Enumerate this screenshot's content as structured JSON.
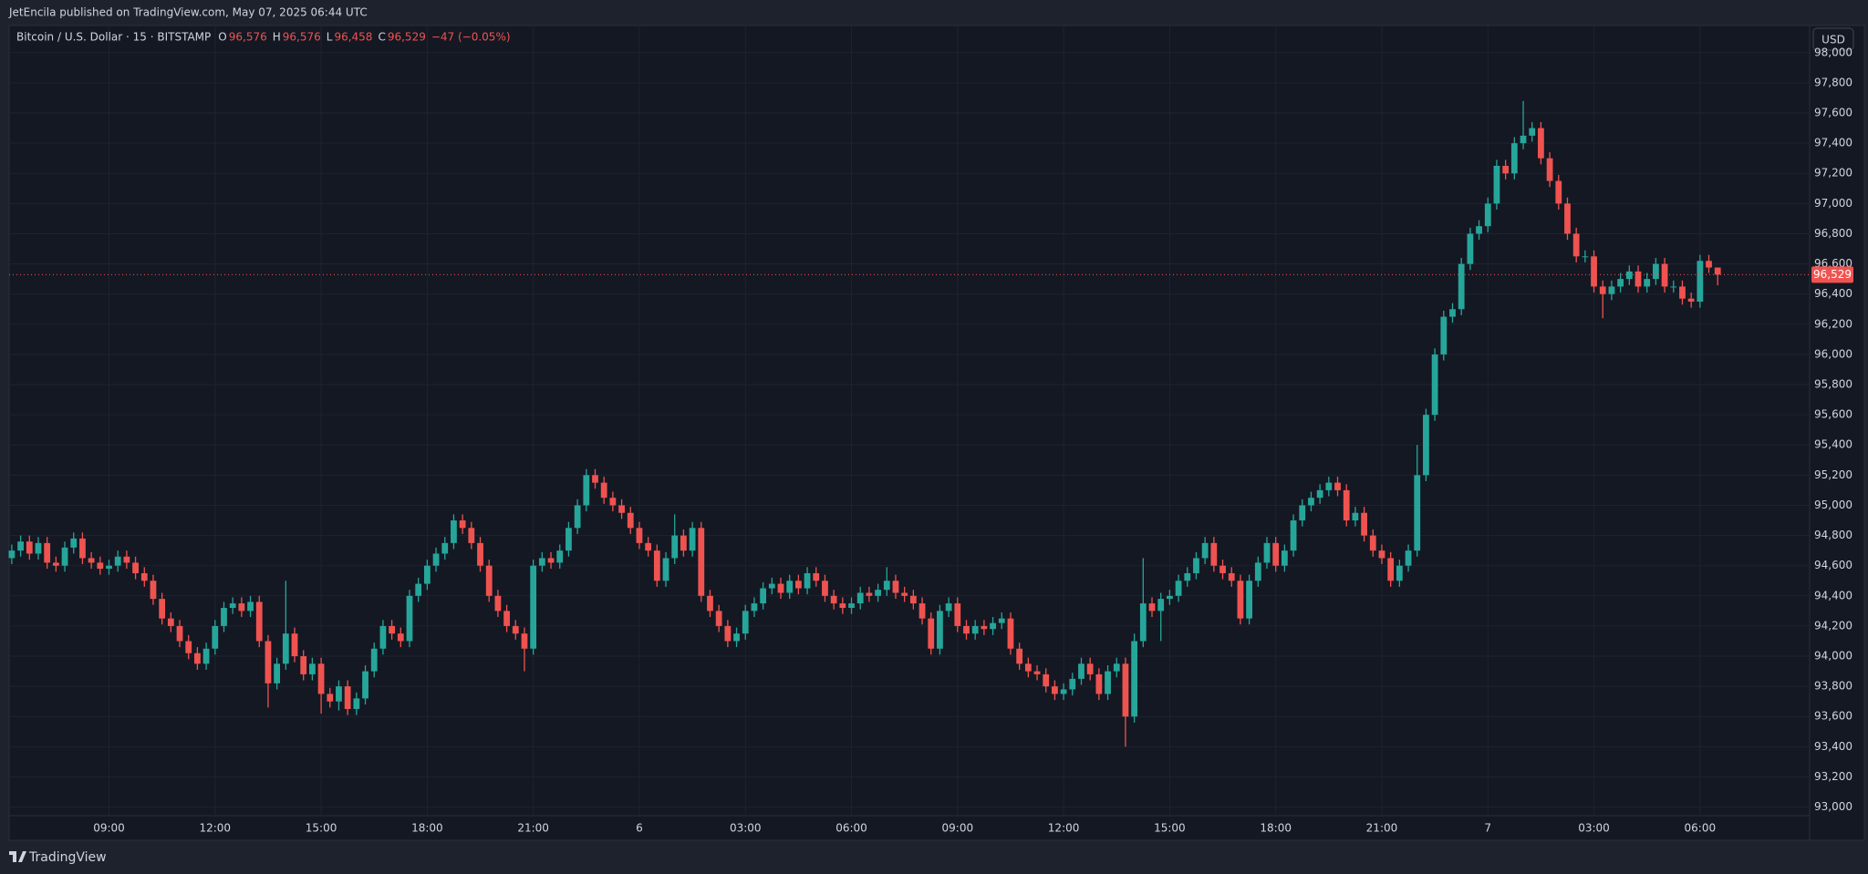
{
  "header": {
    "attribution": "JetEncila published on TradingView.com, May 07, 2025 06:44 UTC",
    "footer": "TradingView"
  },
  "chart_data": {
    "type": "candlestick",
    "symbol": "Bitcoin / U.S. Dollar · 15 · BITSTAMP",
    "ohlc_legend": {
      "o_key": "O",
      "o": "96,576",
      "h_key": "H",
      "h": "96,576",
      "l_key": "L",
      "l": "96,458",
      "c_key": "C",
      "c": "96,529",
      "change": "−47 (−0.05%)"
    },
    "currency": "USD",
    "up_color": "#26a69a",
    "down_color": "#ef5350",
    "last_price": {
      "value": 96529,
      "label": "96,529"
    },
    "xlim": [
      -0.3,
      203.4
    ],
    "xticks": [
      {
        "value": 11,
        "label": "09:00"
      },
      {
        "value": 23,
        "label": "12:00"
      },
      {
        "value": 35,
        "label": "15:00"
      },
      {
        "value": 47,
        "label": "18:00"
      },
      {
        "value": 59,
        "label": "21:00"
      },
      {
        "value": 71,
        "label": "6"
      },
      {
        "value": 83,
        "label": "03:00"
      },
      {
        "value": 95,
        "label": "06:00"
      },
      {
        "value": 107,
        "label": "09:00"
      },
      {
        "value": 119,
        "label": "12:00"
      },
      {
        "value": 131,
        "label": "15:00"
      },
      {
        "value": 143,
        "label": "18:00"
      },
      {
        "value": 155,
        "label": "21:00"
      },
      {
        "value": 167,
        "label": "7"
      },
      {
        "value": 179,
        "label": "03:00"
      },
      {
        "value": 191,
        "label": "06:00"
      }
    ],
    "ylim": [
      92780,
      98180
    ],
    "yticks": [
      {
        "value": 93000,
        "label": "93,000"
      },
      {
        "value": 93200,
        "label": "93,200"
      },
      {
        "value": 93400,
        "label": "93,400"
      },
      {
        "value": 93600,
        "label": "93,600"
      },
      {
        "value": 93800,
        "label": "93,800"
      },
      {
        "value": 94000,
        "label": "94,000"
      },
      {
        "value": 94200,
        "label": "94,200"
      },
      {
        "value": 94400,
        "label": "94,400"
      },
      {
        "value": 94600,
        "label": "94,600"
      },
      {
        "value": 94800,
        "label": "94,800"
      },
      {
        "value": 95000,
        "label": "95,000"
      },
      {
        "value": 95200,
        "label": "95,200"
      },
      {
        "value": 95400,
        "label": "95,400"
      },
      {
        "value": 95600,
        "label": "95,600"
      },
      {
        "value": 95800,
        "label": "95,800"
      },
      {
        "value": 96000,
        "label": "96,000"
      },
      {
        "value": 96200,
        "label": "96,200"
      },
      {
        "value": 96400,
        "label": "96,400"
      },
      {
        "value": 96600,
        "label": "96,600"
      },
      {
        "value": 96800,
        "label": "96,800"
      },
      {
        "value": 97000,
        "label": "97,000"
      },
      {
        "value": 97200,
        "label": "97,200"
      },
      {
        "value": 97400,
        "label": "97,400"
      },
      {
        "value": 97600,
        "label": "97,600"
      },
      {
        "value": 97800,
        "label": "97,800"
      },
      {
        "value": 98000,
        "label": "98,000"
      }
    ],
    "grid": true,
    "candles": {
      "open": [
        94650,
        94700,
        94760,
        94680,
        94750,
        94620,
        94600,
        94720,
        94780,
        94650,
        94620,
        94580,
        94600,
        94660,
        94620,
        94550,
        94500,
        94380,
        94250,
        94200,
        94100,
        94020,
        93950,
        94050,
        94200,
        94320,
        94350,
        94300,
        94360,
        94100,
        93820,
        93950,
        94150,
        94000,
        93880,
        93950,
        93750,
        93700,
        93800,
        93650,
        93720,
        93900,
        94050,
        94200,
        94150,
        94100,
        94400,
        94480,
        94600,
        94680,
        94750,
        94900,
        94850,
        94750,
        94600,
        94400,
        94300,
        94200,
        94150,
        94050,
        94600,
        94650,
        94620,
        94700,
        94850,
        95000,
        95200,
        95150,
        95050,
        95000,
        94950,
        94850,
        94750,
        94700,
        94500,
        94650,
        94800,
        94700,
        94850,
        94400,
        94300,
        94200,
        94100,
        94150,
        94300,
        94350,
        94450,
        94480,
        94420,
        94500,
        94450,
        94550,
        94500,
        94400,
        94350,
        94320,
        94350,
        94420,
        94400,
        94440,
        94500,
        94420,
        94400,
        94350,
        94250,
        94050,
        94300,
        94350,
        94200,
        94150,
        94200,
        94180,
        94220,
        94250,
        94050,
        93950,
        93900,
        93880,
        93800,
        93750,
        93780,
        93850,
        93950,
        93880,
        93750,
        93900,
        93950,
        93600,
        94100,
        94350,
        94300,
        94380,
        94400,
        94500,
        94550,
        94650,
        94750,
        94600,
        94550,
        94500,
        94250,
        94500,
        94620,
        94750,
        94600,
        94700,
        94900,
        95000,
        95050,
        95100,
        95150,
        95100,
        94900,
        94950,
        94800,
        94700,
        94650,
        94500,
        94600,
        94700,
        95200,
        95600,
        96000,
        96250,
        96300,
        96600,
        96800,
        96850,
        97000,
        97250,
        97200,
        97400,
        97450,
        97500,
        97300,
        97150,
        97000,
        96800,
        96650,
        96650,
        96450,
        96400,
        96450,
        96500,
        96550,
        96450,
        96500,
        96600,
        96450,
        96450,
        96370,
        96350,
        96620,
        96576
      ],
      "high": [
        94740,
        94800,
        94800,
        94790,
        94790,
        94660,
        94760,
        94820,
        94820,
        94690,
        94660,
        94640,
        94700,
        94700,
        94660,
        94590,
        94540,
        94420,
        94290,
        94240,
        94140,
        94060,
        94090,
        94240,
        94360,
        94390,
        94390,
        94400,
        94400,
        94140,
        93990,
        94500,
        94190,
        94040,
        93990,
        93990,
        93790,
        93840,
        93840,
        93760,
        93940,
        94090,
        94240,
        94240,
        94190,
        94440,
        94520,
        94640,
        94720,
        94790,
        94940,
        94940,
        94890,
        94790,
        94640,
        94440,
        94340,
        94240,
        94190,
        94640,
        94690,
        94690,
        94740,
        94890,
        95040,
        95240,
        95240,
        95190,
        95090,
        95040,
        94990,
        94890,
        94790,
        94740,
        94690,
        94940,
        94840,
        94890,
        94890,
        94440,
        94340,
        94240,
        94190,
        94340,
        94390,
        94490,
        94520,
        94520,
        94540,
        94540,
        94590,
        94590,
        94540,
        94440,
        94390,
        94390,
        94460,
        94460,
        94480,
        94590,
        94540,
        94460,
        94440,
        94390,
        94290,
        94340,
        94390,
        94390,
        94240,
        94240,
        94240,
        94260,
        94290,
        94290,
        94090,
        93990,
        93940,
        93920,
        93840,
        93820,
        93890,
        93990,
        93990,
        93920,
        93940,
        93990,
        93990,
        94150,
        94650,
        94390,
        94420,
        94440,
        94540,
        94590,
        94690,
        94790,
        94790,
        94640,
        94590,
        94540,
        94540,
        94660,
        94790,
        94790,
        94740,
        94940,
        95040,
        95090,
        95140,
        95190,
        95190,
        95140,
        94990,
        94990,
        94840,
        94740,
        94690,
        94640,
        94740,
        95400,
        95640,
        96040,
        96290,
        96340,
        96640,
        96840,
        96890,
        97040,
        97290,
        97290,
        97440,
        97680,
        97540,
        97540,
        97340,
        97190,
        97040,
        96840,
        96690,
        96690,
        96490,
        96490,
        96540,
        96590,
        96590,
        96540,
        96640,
        96640,
        96490,
        96490,
        96410,
        96660,
        96660,
        96576
      ],
      "low": [
        94610,
        94660,
        94640,
        94640,
        94580,
        94560,
        94560,
        94680,
        94610,
        94580,
        94540,
        94540,
        94560,
        94580,
        94510,
        94460,
        94340,
        94210,
        94160,
        94060,
        93980,
        93910,
        93910,
        94010,
        94160,
        94280,
        94260,
        94260,
        94060,
        93660,
        93780,
        93910,
        93960,
        93840,
        93840,
        93620,
        93660,
        93640,
        93610,
        93610,
        93680,
        93860,
        94010,
        94110,
        94060,
        94060,
        94360,
        94440,
        94560,
        94640,
        94710,
        94810,
        94710,
        94560,
        94360,
        94260,
        94160,
        94110,
        93900,
        94010,
        94560,
        94580,
        94580,
        94660,
        94810,
        94960,
        95110,
        95010,
        94960,
        94910,
        94810,
        94710,
        94660,
        94460,
        94460,
        94610,
        94660,
        94660,
        94360,
        94260,
        94160,
        94060,
        94060,
        94110,
        94260,
        94310,
        94410,
        94380,
        94380,
        94410,
        94410,
        94460,
        94360,
        94310,
        94280,
        94280,
        94310,
        94360,
        94360,
        94400,
        94380,
        94360,
        94310,
        94210,
        94010,
        94010,
        94260,
        94160,
        94110,
        94110,
        94140,
        94140,
        94180,
        94010,
        93910,
        93860,
        93840,
        93760,
        93710,
        93710,
        93740,
        93810,
        93840,
        93710,
        93710,
        93860,
        93400,
        93560,
        94060,
        94260,
        94100,
        94340,
        94360,
        94460,
        94510,
        94610,
        94560,
        94510,
        94460,
        94210,
        94210,
        94460,
        94580,
        94560,
        94560,
        94660,
        94860,
        94960,
        95010,
        95060,
        95060,
        94860,
        94860,
        94760,
        94660,
        94610,
        94460,
        94460,
        94560,
        94660,
        95160,
        95560,
        95960,
        96210,
        96260,
        96560,
        96760,
        96810,
        96960,
        97160,
        97160,
        97360,
        97410,
        97260,
        97110,
        96960,
        96760,
        96610,
        96610,
        96410,
        96240,
        96360,
        96410,
        96460,
        96410,
        96410,
        96460,
        96410,
        96410,
        96330,
        96310,
        96310,
        96540,
        96458
      ],
      "close": [
        94700,
        94760,
        94680,
        94750,
        94620,
        94600,
        94720,
        94780,
        94650,
        94620,
        94580,
        94600,
        94660,
        94620,
        94550,
        94500,
        94380,
        94250,
        94200,
        94100,
        94020,
        93950,
        94050,
        94200,
        94320,
        94350,
        94300,
        94360,
        94100,
        93820,
        93950,
        94150,
        94000,
        93880,
        93950,
        93750,
        93700,
        93800,
        93650,
        93720,
        93900,
        94050,
        94200,
        94150,
        94100,
        94400,
        94480,
        94600,
        94680,
        94750,
        94900,
        94850,
        94750,
        94600,
        94400,
        94300,
        94200,
        94150,
        94050,
        94600,
        94650,
        94620,
        94700,
        94850,
        95000,
        95200,
        95150,
        95050,
        95000,
        94950,
        94850,
        94750,
        94700,
        94500,
        94650,
        94800,
        94700,
        94850,
        94400,
        94300,
        94200,
        94100,
        94150,
        94300,
        94350,
        94450,
        94480,
        94420,
        94500,
        94450,
        94550,
        94500,
        94400,
        94350,
        94320,
        94350,
        94420,
        94400,
        94440,
        94500,
        94420,
        94400,
        94350,
        94250,
        94050,
        94300,
        94350,
        94200,
        94150,
        94200,
        94180,
        94220,
        94250,
        94050,
        93950,
        93900,
        93880,
        93800,
        93750,
        93780,
        93850,
        93950,
        93880,
        93750,
        93900,
        93950,
        93600,
        94100,
        94350,
        94300,
        94380,
        94400,
        94500,
        94550,
        94650,
        94750,
        94600,
        94550,
        94500,
        94250,
        94500,
        94620,
        94750,
        94600,
        94700,
        94900,
        95000,
        95050,
        95100,
        95150,
        95100,
        94900,
        94950,
        94800,
        94700,
        94650,
        94500,
        94600,
        94700,
        95200,
        95600,
        96000,
        96250,
        96300,
        96600,
        96800,
        96850,
        97000,
        97250,
        97200,
        97400,
        97450,
        97500,
        97300,
        97150,
        97000,
        96800,
        96650,
        96650,
        96450,
        96400,
        96450,
        96500,
        96550,
        96450,
        96500,
        96600,
        96450,
        96450,
        96370,
        96350,
        96620,
        96576,
        96529
      ]
    }
  }
}
